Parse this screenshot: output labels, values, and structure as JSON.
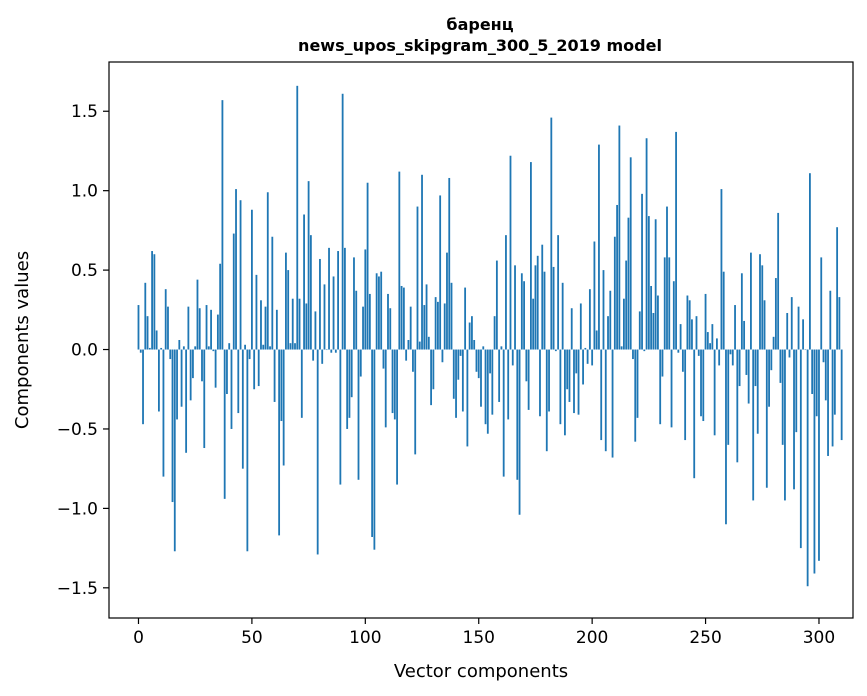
{
  "chart_data": {
    "type": "bar",
    "title": "баренц",
    "subtitle": "news_upos_skipgram_300_5_2019 model",
    "xlabel": "Vector components",
    "ylabel": "Components values",
    "xlim": [
      -13,
      315
    ],
    "ylim": [
      -1.69,
      1.81
    ],
    "xticks": [
      0,
      50,
      100,
      150,
      200,
      250,
      300
    ],
    "xtick_labels": [
      "0",
      "50",
      "100",
      "150",
      "200",
      "250",
      "300"
    ],
    "yticks": [
      -1.5,
      -1.0,
      -0.5,
      0.0,
      0.5,
      1.0,
      1.5
    ],
    "ytick_labels": [
      "−1.5",
      "−1.0",
      "−0.5",
      "0.0",
      "0.5",
      "1.0",
      "1.5"
    ],
    "bar_color": "#1f77b4",
    "grid": false,
    "series": [
      {
        "values": [
          0.28,
          -0.02,
          -0.47,
          0.42,
          0.21,
          0.01,
          0.62,
          0.6,
          0.12,
          -0.39,
          0.01,
          -0.8,
          0.38,
          0.27,
          -0.06,
          -0.96,
          -1.27,
          -0.44,
          0.06,
          -0.36,
          0.02,
          -0.65,
          0.27,
          -0.32,
          -0.18,
          0.02,
          0.44,
          0.26,
          -0.2,
          -0.62,
          0.28,
          0.02,
          0.25,
          -0.01,
          -0.24,
          0.22,
          0.54,
          1.57,
          -0.94,
          -0.28,
          0.04,
          -0.5,
          0.73,
          1.01,
          -0.4,
          0.94,
          -0.75,
          0.03,
          -1.27,
          -0.06,
          0.88,
          -0.25,
          0.47,
          -0.23,
          0.31,
          0.03,
          0.27,
          0.99,
          0.02,
          0.71,
          -0.33,
          0.25,
          -1.17,
          -0.45,
          -0.73,
          0.61,
          0.5,
          0.04,
          0.32,
          0.04,
          1.66,
          0.32,
          -0.43,
          0.85,
          0.29,
          1.06,
          0.72,
          -0.07,
          0.24,
          -1.29,
          0.57,
          -0.09,
          0.41,
          0.0,
          0.64,
          -0.02,
          0.46,
          -0.02,
          0.62,
          -0.85,
          1.61,
          0.64,
          -0.5,
          -0.43,
          -0.3,
          0.58,
          0.37,
          -0.82,
          -0.17,
          0.27,
          0.63,
          1.05,
          0.35,
          -1.18,
          -1.26,
          0.48,
          0.46,
          0.49,
          -0.12,
          -0.49,
          0.35,
          0.26,
          -0.4,
          -0.44,
          -0.85,
          1.12,
          0.4,
          0.39,
          -0.07,
          0.06,
          0.27,
          -0.14,
          -0.66,
          0.9,
          0.05,
          1.1,
          0.28,
          0.41,
          0.08,
          -0.35,
          -0.25,
          0.33,
          0.3,
          0.97,
          -0.08,
          0.29,
          0.61,
          1.08,
          0.42,
          -0.31,
          -0.43,
          -0.19,
          -0.04,
          -0.39,
          0.39,
          -0.61,
          0.17,
          0.21,
          0.06,
          -0.14,
          -0.18,
          -0.36,
          0.02,
          -0.47,
          -0.53,
          -0.15,
          -0.41,
          0.21,
          0.56,
          -0.33,
          0.02,
          -0.8,
          0.72,
          -0.44,
          1.22,
          -0.1,
          0.53,
          -0.82,
          -1.04,
          0.48,
          0.43,
          -0.2,
          -0.38,
          1.18,
          0.32,
          0.53,
          0.59,
          -0.42,
          0.66,
          0.49,
          -0.64,
          -0.39,
          1.46,
          0.52,
          -0.01,
          0.72,
          -0.47,
          0.42,
          -0.54,
          -0.25,
          -0.33,
          0.26,
          -0.4,
          -0.15,
          -0.41,
          0.29,
          -0.22,
          0.01,
          -0.09,
          0.38,
          -0.1,
          0.68,
          0.12,
          1.29,
          -0.57,
          0.5,
          -0.64,
          0.21,
          0.37,
          -0.68,
          0.71,
          0.91,
          1.41,
          0.02,
          0.32,
          0.56,
          0.83,
          1.21,
          -0.06,
          -0.58,
          -0.43,
          0.24,
          0.98,
          -0.01,
          1.33,
          0.84,
          0.4,
          0.23,
          0.82,
          0.34,
          -0.47,
          -0.17,
          0.58,
          0.9,
          0.58,
          -0.49,
          0.43,
          1.37,
          -0.02,
          0.16,
          -0.14,
          -0.57,
          0.34,
          0.31,
          0.19,
          -0.81,
          0.21,
          -0.04,
          -0.42,
          -0.45,
          0.35,
          0.11,
          0.04,
          0.16,
          -0.54,
          0.07,
          -0.1,
          1.01,
          0.49,
          -1.1,
          -0.6,
          -0.03,
          -0.1,
          0.28,
          -0.71,
          -0.23,
          0.48,
          0.18,
          -0.16,
          -0.34,
          0.61,
          -0.95,
          -0.23,
          -0.53,
          0.6,
          0.53,
          0.31,
          -0.87,
          -0.36,
          -0.13,
          0.08,
          0.45,
          0.86,
          -0.21,
          -0.6,
          -0.95,
          0.23,
          -0.05,
          0.33,
          -0.88,
          -0.52,
          0.27,
          -1.25,
          0.19,
          0.0,
          -1.49,
          1.11,
          -0.28,
          -1.41,
          -0.42,
          -1.33,
          0.58,
          -0.08,
          -0.32,
          -0.67,
          0.37,
          -0.61,
          -0.41,
          0.77,
          0.33,
          -0.57
        ]
      }
    ]
  }
}
